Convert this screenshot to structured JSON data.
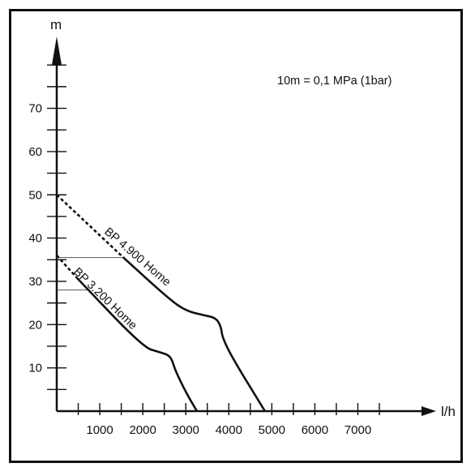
{
  "chart_data": {
    "type": "line",
    "xlabel": "l/h",
    "ylabel": "m",
    "annotation": "10m = 0,1 MPa (1bar)",
    "xlim": [
      0,
      8500
    ],
    "ylim": [
      0,
      86
    ],
    "x_ticks": [
      1000,
      2000,
      3000,
      4000,
      5000,
      6000,
      7000
    ],
    "y_ticks": [
      10,
      20,
      30,
      40,
      50,
      60,
      70
    ],
    "grid": false,
    "series": [
      {
        "name": "BP 4.900 Home",
        "color": "#111111",
        "dashed_points": [
          [
            0,
            50
          ],
          [
            1550,
            35.5
          ]
        ],
        "points": [
          [
            1550,
            35.5
          ],
          [
            2600,
            26
          ],
          [
            3000,
            23.2
          ],
          [
            3400,
            22.2
          ],
          [
            3700,
            21.6
          ],
          [
            3820,
            19.5
          ],
          [
            3850,
            17
          ],
          [
            4100,
            12
          ],
          [
            4840,
            0
          ]
        ]
      },
      {
        "name": "BP 3.200 Home",
        "color": "#111111",
        "dashed_points": [
          [
            0,
            36
          ],
          [
            450,
            31
          ]
        ],
        "points": [
          [
            450,
            31
          ],
          [
            2000,
            14.8
          ],
          [
            2400,
            13.6
          ],
          [
            2650,
            12.8
          ],
          [
            2750,
            9.5
          ],
          [
            3020,
            4
          ],
          [
            3260,
            0
          ]
        ]
      }
    ],
    "reference_lines": [
      {
        "from": [
          0,
          35.5
        ],
        "to": [
          1550,
          35.5
        ]
      },
      {
        "from": [
          0,
          28
        ],
        "to": [
          750,
          28
        ]
      }
    ]
  }
}
